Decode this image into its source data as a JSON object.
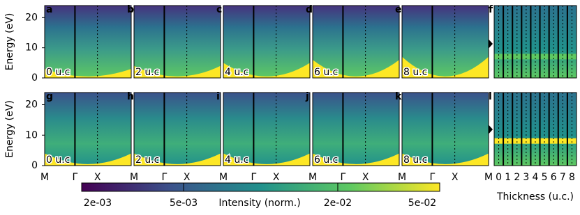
{
  "chart_data": {
    "type": "heatmap",
    "ylabel": "Energy (eV)",
    "ylim": [
      0,
      24
    ],
    "yticks": [
      0,
      10,
      20
    ],
    "categories": [
      "M",
      "Γ",
      "X",
      "M"
    ],
    "rows": [
      {
        "panels": [
          {
            "label": "a",
            "thickness": "0 u.c"
          },
          {
            "label": "b",
            "thickness": "2 u.c"
          },
          {
            "label": "c",
            "thickness": "4 u.c"
          },
          {
            "label": "d",
            "thickness": "6 u.c"
          },
          {
            "label": "e",
            "thickness": "8 u.c"
          }
        ],
        "side_label": "f"
      },
      {
        "panels": [
          {
            "label": "g",
            "thickness": "0 u.c"
          },
          {
            "label": "h",
            "thickness": "2 u.c"
          },
          {
            "label": "i",
            "thickness": "4 u.c"
          },
          {
            "label": "j",
            "thickness": "6 u.c"
          },
          {
            "label": "k",
            "thickness": "8 u.c"
          }
        ],
        "side_label": "l"
      }
    ],
    "colorbar": {
      "label": "Intensity (norm.)",
      "log": true,
      "lim": [
        0.002,
        0.05
      ],
      "ticks": [
        {
          "value": 0.002,
          "label": "2e-03"
        },
        {
          "value": 0.005,
          "label": "5e-03"
        },
        {
          "value": 0.02,
          "label": "2e-02"
        },
        {
          "value": 0.05,
          "label": "5e-02"
        }
      ]
    },
    "thickness_axis": {
      "label": "Thickness (u.c.)",
      "xlim": [
        -0.5,
        8.5
      ],
      "xticks": [
        0,
        1,
        2,
        3,
        4,
        5,
        6,
        7,
        8
      ]
    }
  }
}
